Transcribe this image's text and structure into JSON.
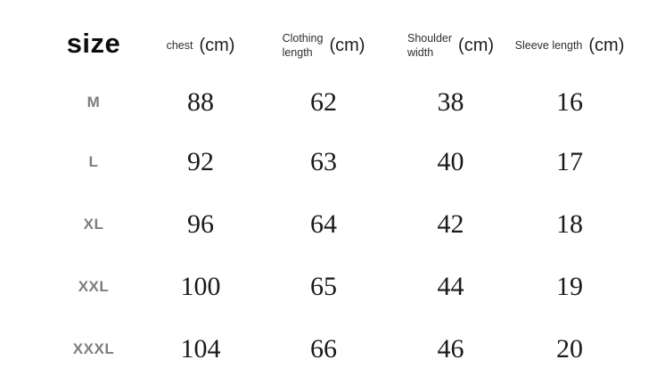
{
  "header": {
    "size_label": "size",
    "columns": [
      {
        "line1": "chest",
        "line2": "",
        "unit": "(cm)"
      },
      {
        "line1": "Clothing",
        "line2": "length",
        "unit": "(cm)"
      },
      {
        "line1": "Shoulder",
        "line2": "width",
        "unit": "(cm)"
      },
      {
        "line1": "Sleeve length",
        "line2": "",
        "unit": "(cm)"
      }
    ]
  },
  "rows": [
    {
      "size": "M",
      "chest": "88",
      "clothing_length": "62",
      "shoulder_width": "38",
      "sleeve_length": "16"
    },
    {
      "size": "L",
      "chest": "92",
      "clothing_length": "63",
      "shoulder_width": "40",
      "sleeve_length": "17"
    },
    {
      "size": "XL",
      "chest": "96",
      "clothing_length": "64",
      "shoulder_width": "42",
      "sleeve_length": "18"
    },
    {
      "size": "XXL",
      "chest": "100",
      "clothing_length": "65",
      "shoulder_width": "44",
      "sleeve_length": "19"
    },
    {
      "size": "XXXL",
      "chest": "104",
      "clothing_length": "66",
      "shoulder_width": "46",
      "sleeve_length": "20"
    }
  ],
  "colors": {
    "background": "#ffffff",
    "size_label_gray": "#7d7d7d",
    "header_text": "#2e2e2e",
    "number_text": "#1a1a1a"
  }
}
